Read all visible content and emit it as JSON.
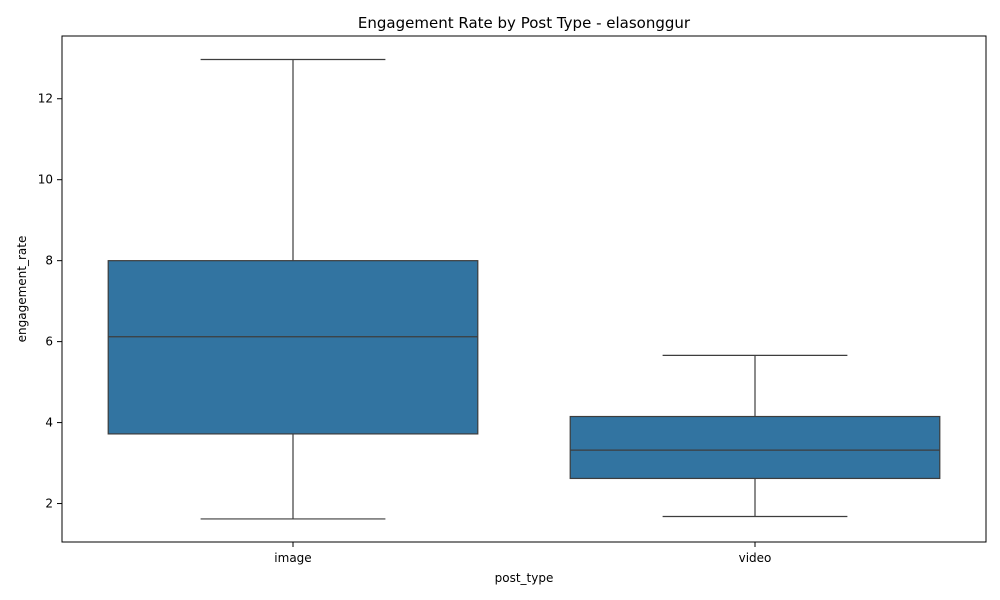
{
  "chart_data": {
    "type": "box",
    "title": "Engagement Rate by Post Type - elasonggur",
    "xlabel": "post_type",
    "ylabel": "engagement_rate",
    "categories": [
      "image",
      "video"
    ],
    "ylim": [
      1.05,
      13.55
    ],
    "yticks": [
      2,
      4,
      6,
      8,
      10,
      12
    ],
    "grid": false,
    "color": "#3274a1",
    "line_color": "#3d3d3d",
    "boxes": [
      {
        "category": "image",
        "whisker_low": 1.62,
        "q1": 3.72,
        "median": 6.12,
        "q3": 8.0,
        "whisker_high": 12.97
      },
      {
        "category": "video",
        "whisker_low": 1.68,
        "q1": 2.62,
        "median": 3.32,
        "q3": 4.15,
        "whisker_high": 5.66
      }
    ]
  }
}
